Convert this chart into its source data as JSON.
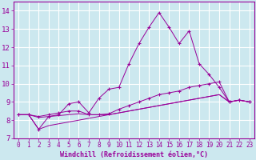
{
  "xlabel": "Windchill (Refroidissement éolien,°C)",
  "background_color": "#cce8ef",
  "grid_color": "#ffffff",
  "line_color": "#990099",
  "x_values": [
    0,
    1,
    2,
    3,
    4,
    5,
    6,
    7,
    8,
    9,
    10,
    11,
    12,
    13,
    14,
    15,
    16,
    17,
    18,
    19,
    20,
    21,
    22,
    23
  ],
  "series1": [
    8.3,
    8.3,
    7.5,
    8.2,
    8.3,
    8.9,
    9.0,
    8.4,
    9.2,
    9.7,
    9.8,
    11.1,
    12.2,
    13.1,
    13.9,
    13.1,
    12.2,
    12.9,
    11.1,
    10.5,
    9.8,
    9.0,
    9.1,
    9.0
  ],
  "series2": [
    8.3,
    8.3,
    8.2,
    8.3,
    8.4,
    8.5,
    8.5,
    8.3,
    8.3,
    8.35,
    8.6,
    8.8,
    9.0,
    9.2,
    9.4,
    9.5,
    9.6,
    9.8,
    9.9,
    10.0,
    10.1,
    9.0,
    9.1,
    9.0
  ],
  "series3": [
    8.3,
    8.3,
    8.15,
    8.2,
    8.25,
    8.3,
    8.35,
    8.3,
    8.3,
    8.3,
    8.4,
    8.5,
    8.6,
    8.7,
    8.8,
    8.9,
    9.0,
    9.1,
    9.2,
    9.3,
    9.4,
    9.0,
    9.1,
    9.0
  ],
  "series4": [
    8.3,
    8.3,
    7.5,
    7.7,
    7.8,
    7.9,
    8.0,
    8.1,
    8.2,
    8.3,
    8.4,
    8.5,
    8.6,
    8.7,
    8.8,
    8.9,
    9.0,
    9.1,
    9.2,
    9.3,
    9.4,
    9.0,
    9.1,
    9.0
  ],
  "ylim": [
    7,
    14.5
  ],
  "xlim": [
    -0.5,
    23.5
  ],
  "yticks": [
    7,
    8,
    9,
    10,
    11,
    12,
    13,
    14
  ],
  "xticks": [
    0,
    1,
    2,
    3,
    4,
    5,
    6,
    7,
    8,
    9,
    10,
    11,
    12,
    13,
    14,
    15,
    16,
    17,
    18,
    19,
    20,
    21,
    22,
    23
  ]
}
